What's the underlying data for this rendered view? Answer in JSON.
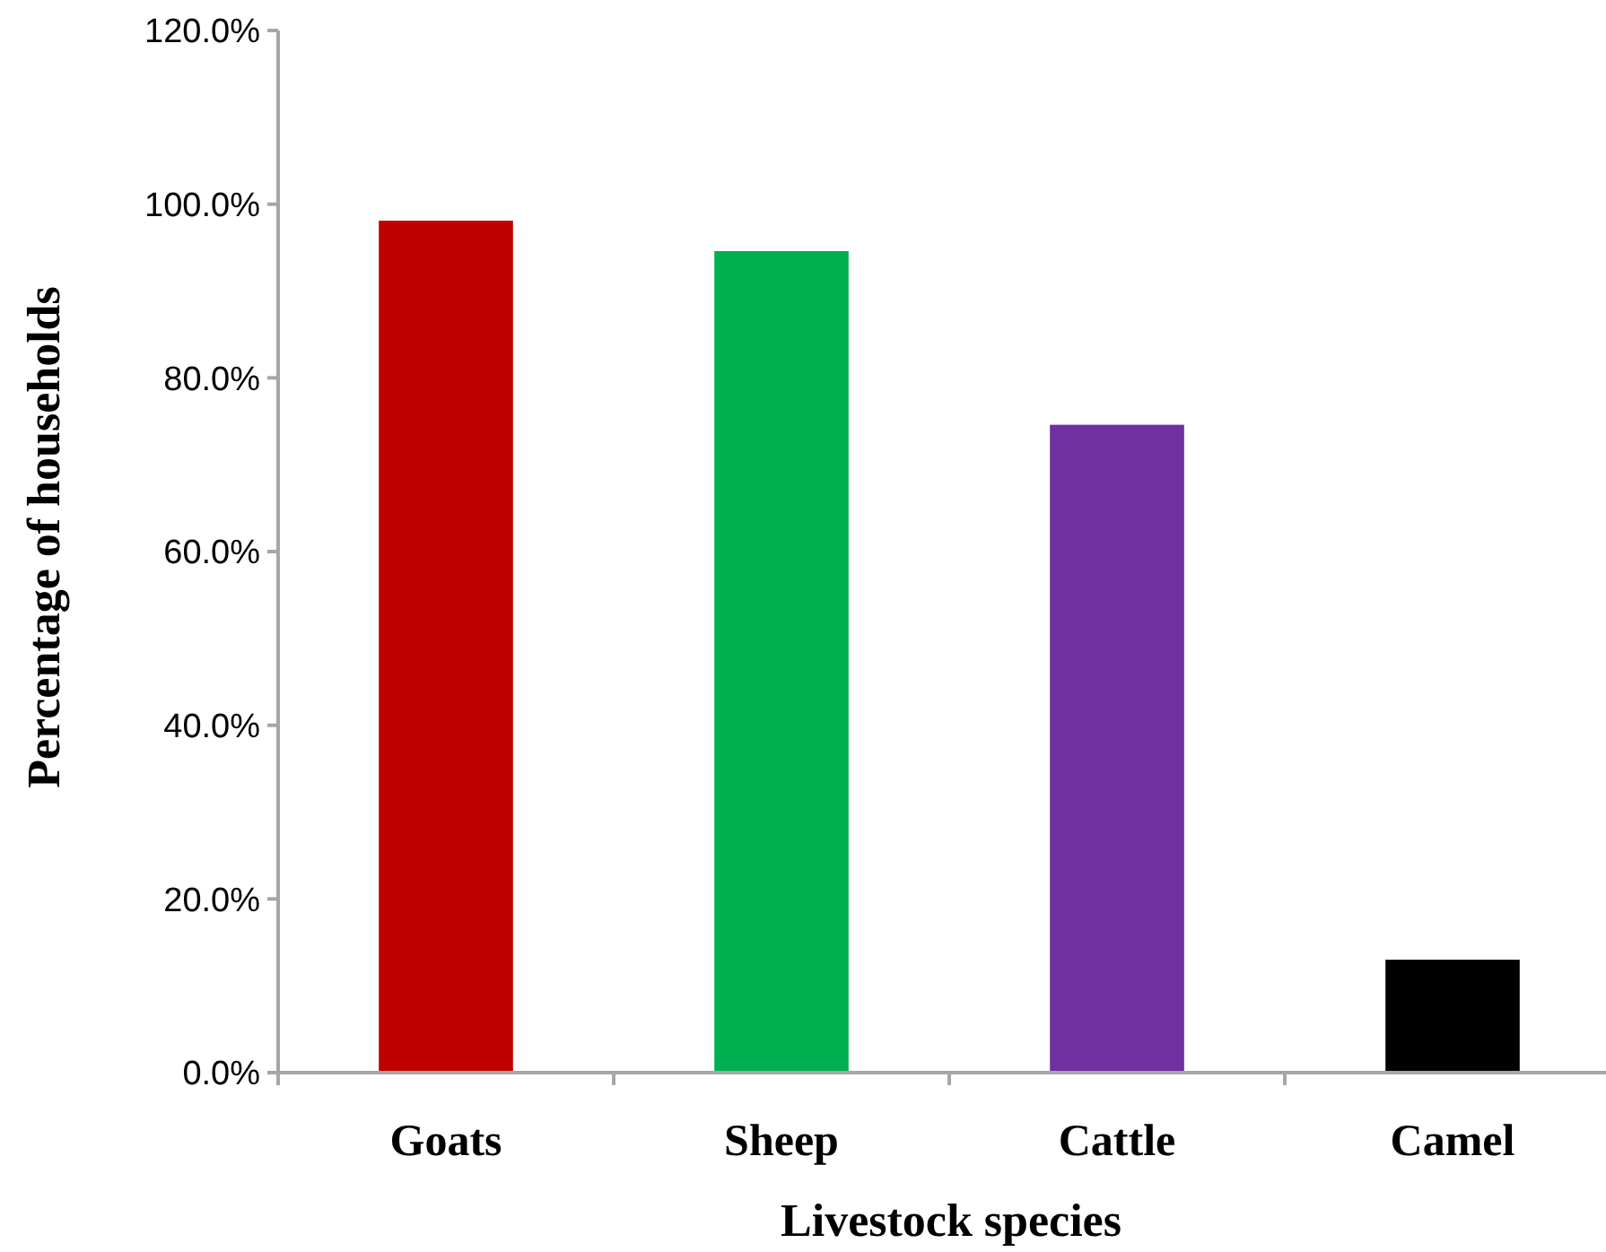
{
  "chart_data": {
    "type": "bar",
    "xlabel": "Livestock species",
    "ylabel": "Percentage of households",
    "categories": [
      "Goats",
      "Sheep",
      "Cattle",
      "Camel"
    ],
    "values": [
      98.1,
      94.6,
      74.6,
      13.0
    ],
    "colors": [
      "#c00000",
      "#00b050",
      "#7030a0",
      "#000000"
    ],
    "ylim": [
      0,
      120
    ],
    "yticks": [
      {
        "value": 0,
        "label": "0.0%"
      },
      {
        "value": 20,
        "label": "20.0%"
      },
      {
        "value": 40,
        "label": "40.0%"
      },
      {
        "value": 60,
        "label": "60.0%"
      },
      {
        "value": 80,
        "label": "80.0%"
      },
      {
        "value": 100,
        "label": "100.0%"
      },
      {
        "value": 120,
        "label": "120.0%"
      }
    ],
    "grid": false
  }
}
